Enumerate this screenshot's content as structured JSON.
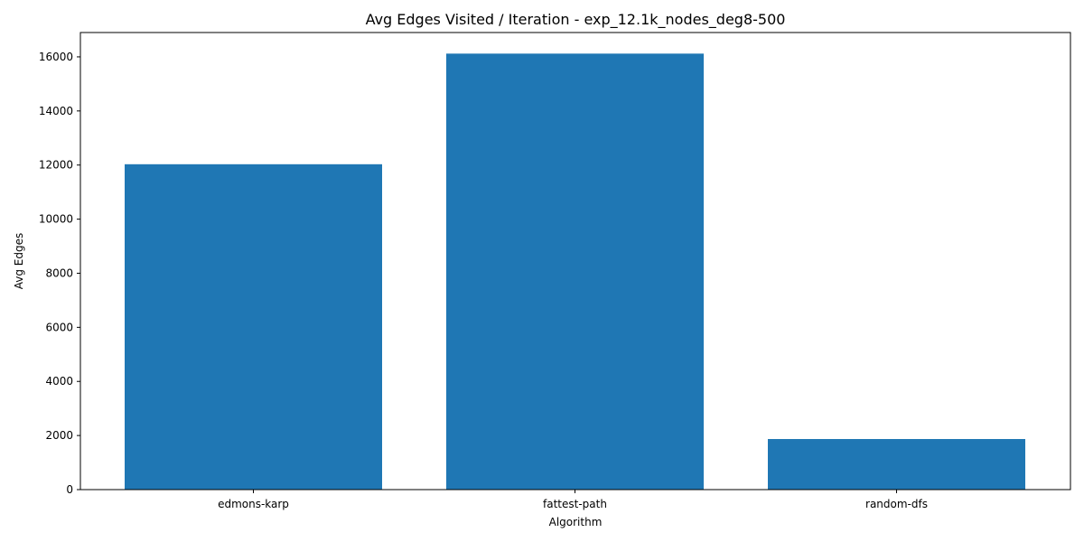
{
  "chart_data": {
    "type": "bar",
    "title": "Avg Edges Visited / Iteration - exp_12.1k_nodes_deg8-500",
    "xlabel": "Algorithm",
    "ylabel": "Avg Edges",
    "categories": [
      "edmons-karp",
      "fattest-path",
      "random-dfs"
    ],
    "values": [
      12030,
      16120,
      1870
    ],
    "ylim": [
      0,
      16900
    ],
    "yticks": [
      0,
      2000,
      4000,
      6000,
      8000,
      10000,
      12000,
      14000,
      16000
    ],
    "bar_color": "#1f77b4",
    "grid": false,
    "legend": "none"
  }
}
